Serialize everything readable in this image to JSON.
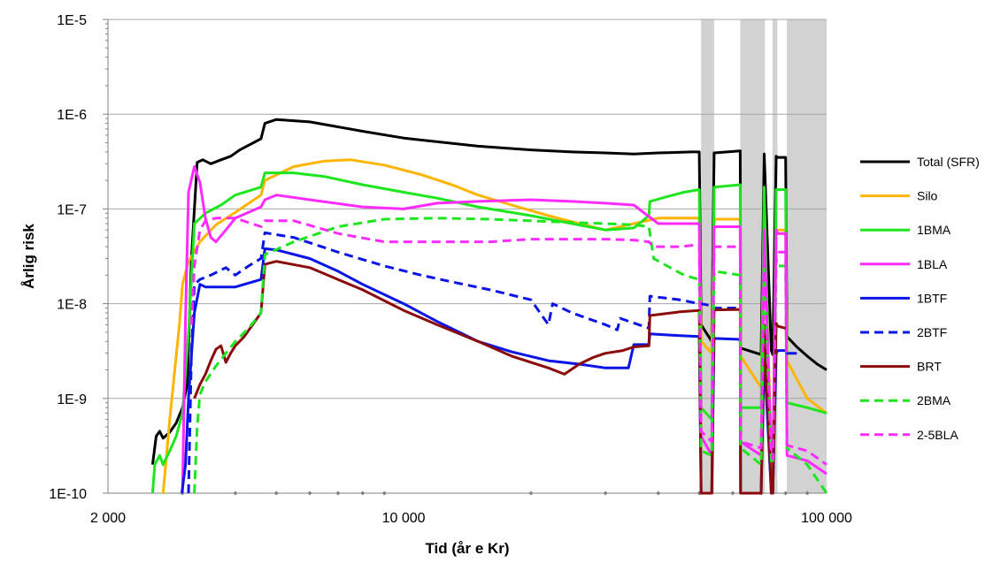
{
  "chart_data": {
    "type": "line",
    "xlabel": "Tid (år e Kr)",
    "ylabel": "Årlig risk",
    "x_scale": "log",
    "y_scale": "log",
    "xlim": [
      2000,
      100000
    ],
    "ylim": [
      1e-10,
      1e-05
    ],
    "x_ticks": [
      {
        "value": 2000,
        "label": "2 000"
      },
      {
        "value": 10000,
        "label": "10 000"
      },
      {
        "value": 100000,
        "label": "100 000"
      }
    ],
    "y_ticks": [
      {
        "value": 1e-10,
        "label": "1E-10"
      },
      {
        "value": 1e-09,
        "label": "1E-9"
      },
      {
        "value": 1e-08,
        "label": "1E-8"
      },
      {
        "value": 1e-07,
        "label": "1E-7"
      },
      {
        "value": 1e-06,
        "label": "1E-6"
      },
      {
        "value": 1e-05,
        "label": "1E-5"
      }
    ],
    "grid": "horizontal",
    "legend_position": "right",
    "shaded_intervals": [
      [
        50500,
        54200
      ],
      [
        62500,
        71500
      ],
      [
        74500,
        76500
      ],
      [
        80500,
        100000
      ]
    ],
    "series": [
      {
        "name": "Total (SFR)",
        "color": "#000000",
        "dash": "solid",
        "x": [
          2550,
          2600,
          2650,
          2700,
          2800,
          2900,
          3000,
          3080,
          3150,
          3250,
          3350,
          3500,
          3700,
          3900,
          4100,
          4600,
          4700,
          5000,
          6000,
          8000,
          10000,
          15000,
          20000,
          25000,
          30000,
          35000,
          40000,
          48000,
          50000,
          50500,
          53500,
          54200,
          62500,
          62600,
          70000,
          71200,
          74000,
          74600,
          76000,
          76600,
          80000,
          80600,
          85000,
          90000,
          95000,
          100000
        ],
        "y": [
          2e-10,
          4e-10,
          4.5e-10,
          3.8e-10,
          4.4e-10,
          5.5e-10,
          8e-10,
          1.4e-09,
          3e-08,
          3.1e-07,
          3.3e-07,
          3e-07,
          3.3e-07,
          3.6e-07,
          4.2e-07,
          5.5e-07,
          8e-07,
          8.8e-07,
          8.3e-07,
          6.6e-07,
          5.6e-07,
          4.6e-07,
          4.2e-07,
          4e-07,
          3.9e-07,
          3.8e-07,
          3.9e-07,
          4e-07,
          4e-07,
          6e-09,
          4e-09,
          3.9e-07,
          4.1e-07,
          3.4e-09,
          2.9e-09,
          3.8e-07,
          3.2e-09,
          2.9e-09,
          3.6e-07,
          3.5e-07,
          3.5e-07,
          4.5e-09,
          3.5e-09,
          2.8e-09,
          2.3e-09,
          2e-09
        ]
      },
      {
        "name": "Silo",
        "color": "#ffb400",
        "dash": "solid",
        "x": [
          2700,
          2800,
          2950,
          3000,
          3100,
          3300,
          3600,
          4000,
          4600,
          4700,
          5500,
          6500,
          7500,
          9000,
          11000,
          13000,
          15000,
          18000,
          22000,
          26000,
          30000,
          40000,
          48000,
          50000,
          50500,
          53500,
          54200,
          62500,
          62600,
          70000,
          71200,
          74000,
          74600,
          76000,
          76600,
          80000,
          80600,
          85000,
          90000,
          100000
        ],
        "y": [
          1e-10,
          6e-10,
          6e-09,
          1.6e-08,
          2.8e-08,
          4.5e-08,
          6.8e-08,
          9.2e-08,
          1.4e-07,
          2e-07,
          2.8e-07,
          3.2e-07,
          3.3e-07,
          2.9e-07,
          2.3e-07,
          1.8e-07,
          1.4e-07,
          1.1e-07,
          8.5e-08,
          7e-08,
          6e-08,
          8e-08,
          8e-08,
          8e-08,
          4e-09,
          3e-09,
          7.8e-08,
          7.8e-08,
          2.8e-09,
          1.3e-09,
          7e-08,
          3e-10,
          2.5e-10,
          6e-08,
          6e-08,
          6e-08,
          2.5e-09,
          1.6e-09,
          1e-09,
          7e-10
        ]
      },
      {
        "name": "1BMA",
        "color": "#1ee61e",
        "dash": "solid",
        "x": [
          2550,
          2580,
          2650,
          2700,
          2800,
          2900,
          3000,
          3100,
          3200,
          3400,
          3700,
          4000,
          4600,
          4700,
          5500,
          6500,
          8000,
          10000,
          12000,
          15000,
          20000,
          25000,
          30000,
          35000,
          38000,
          38200,
          42000,
          46000,
          50000,
          50500,
          53500,
          54200,
          62500,
          62600,
          70000,
          71200,
          74000,
          74600,
          76000,
          76600,
          80000,
          80600,
          90000,
          100000
        ],
        "y": [
          1e-10,
          2e-10,
          2.5e-10,
          2e-10,
          2.8e-10,
          4e-10,
          7e-10,
          5e-09,
          7e-08,
          9e-08,
          1.1e-07,
          1.4e-07,
          1.7e-07,
          2.4e-07,
          2.4e-07,
          2.2e-07,
          1.8e-07,
          1.5e-07,
          1.3e-07,
          1.05e-07,
          8.5e-08,
          7e-08,
          6e-08,
          6.3e-08,
          8.5e-08,
          1.2e-07,
          1.35e-07,
          1.5e-07,
          1.6e-07,
          8e-10,
          6e-10,
          1.7e-07,
          1.8e-07,
          8e-10,
          8e-10,
          1.7e-07,
          1e-10,
          1e-10,
          1.6e-07,
          1.6e-07,
          1.6e-07,
          9e-10,
          8e-10,
          7e-10
        ]
      },
      {
        "name": "1BLA",
        "color": "#ff2aff",
        "dash": "solid",
        "x": [
          3000,
          3050,
          3100,
          3200,
          3300,
          3400,
          3500,
          3600,
          3800,
          4000,
          4600,
          4700,
          5000,
          6000,
          8000,
          10000,
          12000,
          15000,
          20000,
          25000,
          30000,
          35000,
          40000,
          48000,
          50000,
          50500,
          53500,
          54200,
          62500,
          62600,
          70000,
          71200,
          74000,
          74600,
          76000,
          76600,
          80000,
          80600,
          90000,
          100000
        ],
        "y": [
          1e-10,
          7e-09,
          1.5e-07,
          2.8e-07,
          1.9e-07,
          8e-08,
          5e-08,
          4.5e-08,
          6e-08,
          8e-08,
          1.05e-07,
          1.25e-07,
          1.4e-07,
          1.25e-07,
          1.05e-07,
          1e-07,
          1.15e-07,
          1.2e-07,
          1.25e-07,
          1.2e-07,
          1.15e-07,
          1.1e-07,
          7e-08,
          7e-08,
          7e-08,
          4e-10,
          2.5e-10,
          6.5e-08,
          6.5e-08,
          3.5e-10,
          2.5e-10,
          6e-08,
          2e-10,
          2e-10,
          6e-08,
          5.5e-08,
          5.5e-08,
          2.5e-10,
          2.2e-10,
          1.6e-10
        ]
      },
      {
        "name": "1BTF",
        "color": "#0a14e6",
        "dash": "solid",
        "x": [
          2990,
          3050,
          3100,
          3200,
          3300,
          3400,
          3600,
          4000,
          4600,
          4700,
          5000,
          6000,
          7000,
          8000,
          10000,
          12000,
          15000,
          18000,
          22000,
          26000,
          30000,
          34000,
          35000,
          38000,
          38200,
          45000,
          50000,
          50500,
          53500,
          54200,
          62500,
          62600,
          70000,
          71200,
          74000,
          74600,
          76000,
          76600,
          80000,
          80600,
          85000
        ],
        "y": [
          1e-10,
          2e-10,
          1e-09,
          8e-09,
          1.6e-08,
          1.5e-08,
          1.5e-08,
          1.5e-08,
          1.8e-08,
          3.8e-08,
          3.7e-08,
          3e-08,
          2.2e-08,
          1.6e-08,
          1e-08,
          6.5e-09,
          4e-09,
          3.1e-09,
          2.5e-09,
          2.3e-09,
          2.1e-09,
          2.1e-09,
          3.7e-09,
          3.7e-09,
          4.8e-09,
          4.6e-09,
          4.5e-09,
          1e-10,
          1e-10,
          4.3e-09,
          4.2e-09,
          1e-10,
          1e-10,
          3e-09,
          1e-10,
          1e-10,
          3e-09,
          3.2e-09,
          3.2e-09,
          3e-09,
          3e-09
        ]
      },
      {
        "name": "2BTF",
        "color": "#0a14e6",
        "dash": "dashed",
        "x": [
          3100,
          3150,
          3200,
          3300,
          3500,
          3800,
          4000,
          4300,
          4600,
          4700,
          5500,
          7000,
          9000,
          11000,
          13000,
          16000,
          20000,
          22000,
          22500,
          25000,
          30000,
          32000,
          32500,
          36000,
          38000,
          38200,
          45000,
          50000,
          50500,
          53500,
          54200,
          62500
        ],
        "y": [
          1e-10,
          3e-09,
          1.6e-08,
          1.8e-08,
          2e-08,
          2.4e-08,
          2e-08,
          2.5e-08,
          3e-08,
          5.6e-08,
          5e-08,
          3.5e-08,
          2.5e-08,
          2e-08,
          1.7e-08,
          1.4e-08,
          1.1e-08,
          6e-09,
          1e-08,
          8e-09,
          6e-09,
          5.3e-09,
          7e-09,
          6e-09,
          5.5e-09,
          1.2e-08,
          1.1e-08,
          1e-08,
          1e-08,
          9.5e-09,
          9e-09,
          9e-09
        ]
      },
      {
        "name": "BRT",
        "color": "#8b0a0a",
        "dash": "solid",
        "x": [
          3200,
          3300,
          3400,
          3500,
          3600,
          3700,
          3800,
          3900,
          4000,
          4200,
          4600,
          4700,
          5000,
          6000,
          8000,
          10000,
          12000,
          15000,
          18000,
          22000,
          24000,
          26000,
          28000,
          30000,
          33000,
          35000,
          38000,
          38200,
          45000,
          50000,
          50500,
          53500,
          54200,
          62500,
          62600,
          70000,
          71200,
          74000,
          74600,
          76000,
          76600,
          80000
        ],
        "y": [
          1e-09,
          1.4e-09,
          1.8e-09,
          2.5e-09,
          3.3e-09,
          3.6e-09,
          2.4e-09,
          3e-09,
          3.6e-09,
          4.5e-09,
          8e-09,
          2.6e-08,
          2.8e-08,
          2.4e-08,
          1.4e-08,
          8.5e-09,
          6e-09,
          4e-09,
          2.8e-09,
          2.1e-09,
          1.8e-09,
          2.3e-09,
          2.7e-09,
          3e-09,
          3.2e-09,
          3.5e-09,
          3.6e-09,
          7.5e-09,
          8.2e-09,
          8.5e-09,
          1e-10,
          1e-10,
          8.6e-09,
          8.7e-09,
          1e-10,
          1e-10,
          6e-09,
          1e-10,
          1e-10,
          6.2e-09,
          5.8e-09,
          5.5e-09
        ]
      },
      {
        "name": "2BMA",
        "color": "#1ee61e",
        "dash": "dashed",
        "x": [
          3200,
          3250,
          3300,
          3400,
          3600,
          3800,
          4000,
          4300,
          4600,
          4700,
          5500,
          7000,
          9000,
          12000,
          16000,
          20000,
          25000,
          30000,
          35000,
          38000,
          39000,
          42000,
          46000,
          50000,
          50500,
          53500,
          54200,
          62500,
          62600,
          70000,
          71200,
          74000,
          74600,
          76000,
          76600,
          80000,
          80600,
          90000,
          100000
        ],
        "y": [
          1e-10,
          5e-10,
          1.1e-09,
          1.5e-09,
          2.2e-09,
          3e-09,
          4e-09,
          5.5e-09,
          8e-09,
          3.3e-08,
          4.5e-08,
          6.5e-08,
          7.8e-08,
          8e-08,
          7.8e-08,
          7.5e-08,
          7.2e-08,
          7e-08,
          6.8e-08,
          6.5e-08,
          3e-08,
          2.5e-08,
          2e-08,
          1.8e-08,
          2.8e-10,
          2.5e-10,
          2.2e-08,
          2e-08,
          3e-10,
          2e-10,
          2.5e-08,
          2.2e-10,
          2e-10,
          3e-08,
          2.5e-08,
          2.5e-08,
          3e-10,
          2e-10,
          1e-10
        ]
      },
      {
        "name": "2-5BLA",
        "color": "#ff2aff",
        "dash": "dashed",
        "x": [
          3150,
          3200,
          3300,
          3400,
          3600,
          4000,
          4600,
          4700,
          5500,
          7000,
          9000,
          12000,
          16000,
          20000,
          25000,
          30000,
          35000,
          38000,
          39000,
          45000,
          50000,
          50500,
          53500,
          54200,
          62500,
          62600,
          70000,
          71200,
          74000,
          74600,
          76000,
          76600,
          80000,
          80600,
          90000,
          100000
        ],
        "y": [
          6e-09,
          2.5e-08,
          6e-08,
          7.5e-08,
          8e-08,
          8e-08,
          6.5e-08,
          7.5e-08,
          7.5e-08,
          5.5e-08,
          4.5e-08,
          4.5e-08,
          4.5e-08,
          4.8e-08,
          4.8e-08,
          4.8e-08,
          4.7e-08,
          4.5e-08,
          4e-08,
          4e-08,
          4.2e-08,
          4.5e-10,
          3.5e-10,
          4e-08,
          4e-08,
          3.5e-10,
          3e-10,
          3.8e-08,
          2.5e-10,
          2.3e-10,
          3.5e-08,
          3.5e-08,
          3.5e-08,
          3.2e-10,
          2.8e-10,
          2e-10
        ]
      }
    ]
  }
}
